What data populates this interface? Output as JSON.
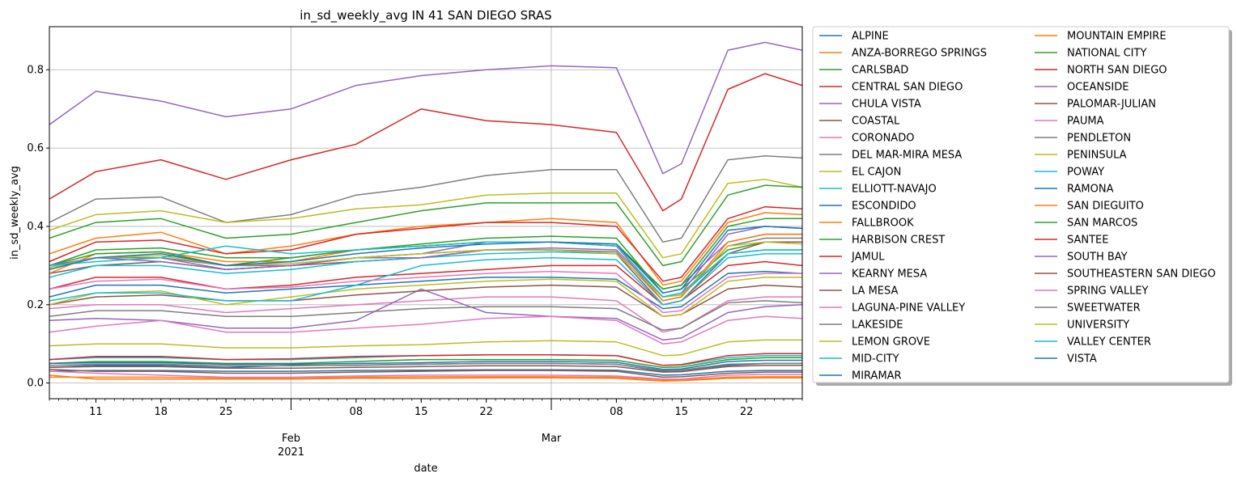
{
  "chart_data": {
    "type": "line",
    "title": "in_sd_weekly_avg IN 41 SAN DIEGO SRAS",
    "xlabel": "date",
    "ylabel": "in_sd_weekly_avg",
    "xlim": [
      "2021-01-06",
      "2021-03-28"
    ],
    "ylim": [
      -0.04,
      0.91
    ],
    "grid": true,
    "legend_placement": "outside-right",
    "x_ticks": [
      {
        "date": "2021-01-11",
        "label": "11"
      },
      {
        "date": "2021-01-18",
        "label": "18"
      },
      {
        "date": "2021-01-25",
        "label": "25"
      },
      {
        "date": "2021-02-01",
        "label": "Feb\n2021"
      },
      {
        "date": "2021-02-08",
        "label": "08"
      },
      {
        "date": "2021-02-15",
        "label": "15"
      },
      {
        "date": "2021-02-22",
        "label": "22"
      },
      {
        "date": "2021-03-01",
        "label": "Mar"
      },
      {
        "date": "2021-03-08",
        "label": "08"
      },
      {
        "date": "2021-03-15",
        "label": "15"
      },
      {
        "date": "2021-03-22",
        "label": "22"
      }
    ],
    "y_ticks": [
      {
        "value": 0.0,
        "label": "0.0"
      },
      {
        "value": 0.2,
        "label": "0.2"
      },
      {
        "value": 0.4,
        "label": "0.4"
      },
      {
        "value": 0.6,
        "label": "0.6"
      },
      {
        "value": 0.8,
        "label": "0.8"
      }
    ],
    "key_dates": [
      "2021-01-06",
      "2021-01-11",
      "2021-01-18",
      "2021-01-25",
      "2021-02-01",
      "2021-02-08",
      "2021-02-15",
      "2021-02-22",
      "2021-03-01",
      "2021-03-08",
      "2021-03-13",
      "2021-03-15",
      "2021-03-20",
      "2021-03-24",
      "2021-03-28"
    ],
    "series": [
      {
        "name": "ALPINE",
        "color": "#1f77b4",
        "values": [
          0.04,
          0.045,
          0.045,
          0.04,
          0.045,
          0.045,
          0.048,
          0.05,
          0.05,
          0.048,
          0.03,
          0.032,
          0.045,
          0.05,
          0.05
        ]
      },
      {
        "name": "ANZA-BORREGO SPRINGS",
        "color": "#ff7f0e",
        "values": [
          0.02,
          0.01,
          0.01,
          0.01,
          0.01,
          0.012,
          0.012,
          0.013,
          0.013,
          0.012,
          0.005,
          0.006,
          0.012,
          0.013,
          0.013
        ]
      },
      {
        "name": "CARLSBAD",
        "color": "#2ca02c",
        "values": [
          0.3,
          0.34,
          0.345,
          0.32,
          0.32,
          0.34,
          0.355,
          0.37,
          0.375,
          0.37,
          0.23,
          0.24,
          0.34,
          0.36,
          0.36
        ]
      },
      {
        "name": "CENTRAL SAN DIEGO",
        "color": "#d62728",
        "values": [
          0.24,
          0.27,
          0.27,
          0.24,
          0.25,
          0.27,
          0.28,
          0.29,
          0.3,
          0.3,
          0.2,
          0.21,
          0.3,
          0.31,
          0.3
        ]
      },
      {
        "name": "CHULA VISTA",
        "color": "#9467bd",
        "values": [
          0.3,
          0.32,
          0.32,
          0.3,
          0.3,
          0.32,
          0.33,
          0.36,
          0.36,
          0.35,
          0.24,
          0.25,
          0.36,
          0.38,
          0.38
        ]
      },
      {
        "name": "COASTAL",
        "color": "#8c564b",
        "values": [
          0.28,
          0.3,
          0.31,
          0.29,
          0.3,
          0.31,
          0.32,
          0.34,
          0.34,
          0.33,
          0.2,
          0.21,
          0.33,
          0.36,
          0.36
        ]
      },
      {
        "name": "CORONADO",
        "color": "#e377c2",
        "values": [
          0.19,
          0.2,
          0.2,
          0.18,
          0.19,
          0.2,
          0.21,
          0.22,
          0.22,
          0.21,
          0.13,
          0.14,
          0.21,
          0.22,
          0.22
        ]
      },
      {
        "name": "DEL MAR-MIRA MESA",
        "color": "#7f7f7f",
        "values": [
          0.41,
          0.47,
          0.475,
          0.41,
          0.43,
          0.48,
          0.5,
          0.53,
          0.545,
          0.545,
          0.36,
          0.37,
          0.57,
          0.58,
          0.575
        ]
      },
      {
        "name": "EL CAJON",
        "color": "#bcbd22",
        "values": [
          0.39,
          0.43,
          0.44,
          0.41,
          0.42,
          0.445,
          0.455,
          0.48,
          0.485,
          0.485,
          0.32,
          0.33,
          0.51,
          0.52,
          0.5
        ]
      },
      {
        "name": "ELLIOTT-NAVAJO",
        "color": "#17becf",
        "values": [
          0.27,
          0.3,
          0.3,
          0.28,
          0.29,
          0.31,
          0.32,
          0.33,
          0.335,
          0.33,
          0.22,
          0.225,
          0.33,
          0.34,
          0.34
        ]
      },
      {
        "name": "ESCONDIDO",
        "color": "#1f77b4",
        "values": [
          0.22,
          0.25,
          0.25,
          0.23,
          0.24,
          0.25,
          0.26,
          0.27,
          0.27,
          0.265,
          0.19,
          0.195,
          0.28,
          0.285,
          0.28
        ]
      },
      {
        "name": "FALLBROOK",
        "color": "#ff7f0e",
        "values": [
          0.33,
          0.37,
          0.385,
          0.33,
          0.35,
          0.38,
          0.4,
          0.41,
          0.42,
          0.41,
          0.25,
          0.26,
          0.41,
          0.435,
          0.43
        ]
      },
      {
        "name": "HARBISON CREST",
        "color": "#2ca02c",
        "values": [
          0.37,
          0.41,
          0.42,
          0.37,
          0.38,
          0.41,
          0.44,
          0.46,
          0.46,
          0.46,
          0.3,
          0.31,
          0.48,
          0.505,
          0.5
        ]
      },
      {
        "name": "JAMUL",
        "color": "#d62728",
        "values": [
          0.31,
          0.36,
          0.365,
          0.33,
          0.34,
          0.38,
          0.395,
          0.41,
          0.41,
          0.4,
          0.26,
          0.27,
          0.42,
          0.45,
          0.445
        ]
      },
      {
        "name": "KEARNY MESA",
        "color": "#9467bd",
        "values": [
          0.16,
          0.165,
          0.16,
          0.14,
          0.14,
          0.16,
          0.24,
          0.18,
          0.17,
          0.165,
          0.11,
          0.115,
          0.18,
          0.195,
          0.2
        ]
      },
      {
        "name": "LA MESA",
        "color": "#8c564b",
        "values": [
          0.2,
          0.22,
          0.225,
          0.21,
          0.21,
          0.225,
          0.235,
          0.245,
          0.25,
          0.245,
          0.17,
          0.175,
          0.24,
          0.25,
          0.245
        ]
      },
      {
        "name": "LAGUNA-PINE VALLEY",
        "color": "#e377c2",
        "values": [
          0.13,
          0.145,
          0.16,
          0.13,
          0.13,
          0.14,
          0.15,
          0.165,
          0.17,
          0.16,
          0.1,
          0.105,
          0.16,
          0.17,
          0.165
        ]
      },
      {
        "name": "LAKESIDE",
        "color": "#7f7f7f",
        "values": [
          0.17,
          0.185,
          0.185,
          0.17,
          0.17,
          0.18,
          0.19,
          0.195,
          0.195,
          0.19,
          0.135,
          0.14,
          0.205,
          0.21,
          0.205
        ]
      },
      {
        "name": "LEMON GROVE",
        "color": "#bcbd22",
        "values": [
          0.095,
          0.1,
          0.1,
          0.09,
          0.09,
          0.095,
          0.098,
          0.105,
          0.108,
          0.105,
          0.07,
          0.072,
          0.105,
          0.11,
          0.11
        ]
      },
      {
        "name": "MID-CITY",
        "color": "#17becf",
        "values": [
          0.06,
          0.065,
          0.065,
          0.06,
          0.06,
          0.065,
          0.07,
          0.072,
          0.072,
          0.07,
          0.045,
          0.046,
          0.065,
          0.07,
          0.07
        ]
      },
      {
        "name": "MIRAMAR",
        "color": "#1f77b4",
        "values": [
          0.03,
          0.032,
          0.032,
          0.03,
          0.03,
          0.032,
          0.033,
          0.034,
          0.034,
          0.033,
          0.02,
          0.021,
          0.03,
          0.032,
          0.032
        ]
      },
      {
        "name": "MOUNTAIN EMPIRE",
        "color": "#ff7f0e",
        "values": [
          0.015,
          0.015,
          0.015,
          0.013,
          0.013,
          0.015,
          0.016,
          0.016,
          0.016,
          0.015,
          0.008,
          0.008,
          0.015,
          0.016,
          0.016
        ]
      },
      {
        "name": "NATIONAL CITY",
        "color": "#2ca02c",
        "values": [
          0.05,
          0.055,
          0.055,
          0.05,
          0.05,
          0.055,
          0.06,
          0.06,
          0.06,
          0.058,
          0.04,
          0.041,
          0.06,
          0.065,
          0.065
        ]
      },
      {
        "name": "NORTH SAN DIEGO",
        "color": "#d62728",
        "values": [
          0.47,
          0.54,
          0.57,
          0.52,
          0.57,
          0.61,
          0.7,
          0.67,
          0.66,
          0.64,
          0.44,
          0.47,
          0.75,
          0.79,
          0.76
        ]
      },
      {
        "name": "OCEANSIDE",
        "color": "#9467bd",
        "values": [
          0.66,
          0.745,
          0.72,
          0.68,
          0.7,
          0.76,
          0.785,
          0.8,
          0.81,
          0.805,
          0.535,
          0.56,
          0.85,
          0.87,
          0.85
        ]
      },
      {
        "name": "PALOMAR-JULIAN",
        "color": "#8c564b",
        "values": [
          0.035,
          0.03,
          0.03,
          0.025,
          0.025,
          0.028,
          0.03,
          0.032,
          0.032,
          0.03,
          0.015,
          0.016,
          0.025,
          0.028,
          0.028
        ]
      },
      {
        "name": "PAUMA",
        "color": "#e377c2",
        "values": [
          0.03,
          0.025,
          0.02,
          0.015,
          0.015,
          0.018,
          0.02,
          0.02,
          0.02,
          0.018,
          0.01,
          0.01,
          0.02,
          0.022,
          0.022
        ]
      },
      {
        "name": "PENDLETON",
        "color": "#7f7f7f",
        "values": [
          0.29,
          0.32,
          0.32,
          0.29,
          0.3,
          0.32,
          0.33,
          0.34,
          0.34,
          0.335,
          0.21,
          0.22,
          0.35,
          0.37,
          0.37
        ]
      },
      {
        "name": "PENINSULA",
        "color": "#bcbd22",
        "values": [
          0.2,
          0.23,
          0.235,
          0.2,
          0.22,
          0.24,
          0.25,
          0.26,
          0.265,
          0.26,
          0.17,
          0.175,
          0.26,
          0.27,
          0.27
        ]
      },
      {
        "name": "POWAY",
        "color": "#17becf",
        "values": [
          0.21,
          0.23,
          0.23,
          0.21,
          0.21,
          0.25,
          0.3,
          0.315,
          0.32,
          0.315,
          0.2,
          0.21,
          0.32,
          0.33,
          0.33
        ]
      },
      {
        "name": "RAMONA",
        "color": "#1f77b4",
        "values": [
          0.05,
          0.052,
          0.052,
          0.048,
          0.048,
          0.05,
          0.052,
          0.055,
          0.055,
          0.053,
          0.035,
          0.036,
          0.055,
          0.058,
          0.058
        ]
      },
      {
        "name": "SAN DIEGUITO",
        "color": "#ff7f0e",
        "values": [
          0.28,
          0.33,
          0.335,
          0.31,
          0.31,
          0.34,
          0.35,
          0.36,
          0.36,
          0.35,
          0.21,
          0.22,
          0.36,
          0.38,
          0.38
        ]
      },
      {
        "name": "SAN MARCOS",
        "color": "#2ca02c",
        "values": [
          0.3,
          0.33,
          0.335,
          0.3,
          0.32,
          0.34,
          0.35,
          0.36,
          0.36,
          0.355,
          0.24,
          0.25,
          0.4,
          0.42,
          0.42
        ]
      },
      {
        "name": "SANTEE",
        "color": "#d62728",
        "values": [
          0.06,
          0.068,
          0.068,
          0.06,
          0.062,
          0.068,
          0.07,
          0.072,
          0.072,
          0.07,
          0.045,
          0.047,
          0.07,
          0.075,
          0.075
        ]
      },
      {
        "name": "SOUTH BAY",
        "color": "#9467bd",
        "values": [
          0.3,
          0.32,
          0.31,
          0.29,
          0.3,
          0.32,
          0.32,
          0.34,
          0.345,
          0.34,
          0.22,
          0.23,
          0.38,
          0.4,
          0.395
        ]
      },
      {
        "name": "SOUTHEASTERN SAN DIEGO",
        "color": "#8c564b",
        "values": [
          0.04,
          0.042,
          0.042,
          0.038,
          0.038,
          0.04,
          0.042,
          0.044,
          0.044,
          0.042,
          0.028,
          0.029,
          0.042,
          0.045,
          0.045
        ]
      },
      {
        "name": "SPRING VALLEY",
        "color": "#e377c2",
        "values": [
          0.24,
          0.26,
          0.265,
          0.24,
          0.245,
          0.26,
          0.27,
          0.28,
          0.285,
          0.28,
          0.18,
          0.185,
          0.27,
          0.28,
          0.28
        ]
      },
      {
        "name": "SWEETWATER",
        "color": "#7f7f7f",
        "values": [
          0.045,
          0.048,
          0.048,
          0.044,
          0.044,
          0.046,
          0.048,
          0.05,
          0.05,
          0.048,
          0.032,
          0.033,
          0.048,
          0.05,
          0.05
        ]
      },
      {
        "name": "UNIVERSITY",
        "color": "#bcbd22",
        "values": [
          0.295,
          0.32,
          0.325,
          0.3,
          0.305,
          0.32,
          0.33,
          0.34,
          0.34,
          0.33,
          0.22,
          0.225,
          0.35,
          0.36,
          0.355
        ]
      },
      {
        "name": "VALLEY CENTER",
        "color": "#17becf",
        "values": [
          0.3,
          0.31,
          0.32,
          0.35,
          0.33,
          0.34,
          0.35,
          0.36,
          0.36,
          0.35,
          0.22,
          0.23,
          0.33,
          0.34,
          0.34
        ]
      },
      {
        "name": "VISTA",
        "color": "#1f77b4",
        "values": [
          0.29,
          0.32,
          0.33,
          0.3,
          0.31,
          0.33,
          0.345,
          0.355,
          0.36,
          0.355,
          0.23,
          0.24,
          0.39,
          0.4,
          0.395
        ]
      }
    ]
  }
}
